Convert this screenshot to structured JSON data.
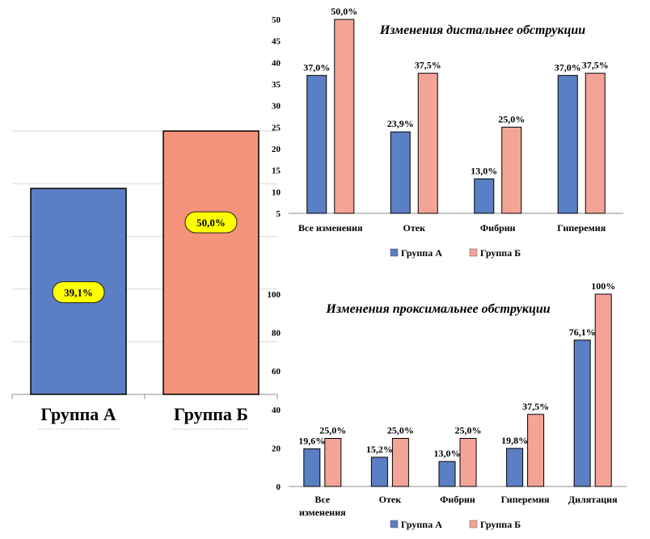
{
  "colors": {
    "group_a": "#5b7fc4",
    "group_b": "#f4a497",
    "group_b_big": "#f49379",
    "pill": "#ffff00"
  },
  "chart_data": [
    {
      "type": "bar",
      "categories": [
        "Группа А",
        "Группа Б"
      ],
      "values": [
        39.1,
        50.0
      ],
      "labels": [
        "39,1%",
        "50,0%"
      ],
      "ylim": [
        0,
        58
      ],
      "grid": true
    },
    {
      "type": "bar",
      "title": "Изменения дистальнее обструкции",
      "categories": [
        "Все изменения",
        "Отек",
        "Фибрин",
        "Гиперемия"
      ],
      "series": [
        {
          "name": "Группа А",
          "values": [
            37.0,
            23.9,
            13.0,
            37.0
          ],
          "labels": [
            "37,0%",
            "23,9%",
            "13,0%",
            "37,0%"
          ]
        },
        {
          "name": "Группа Б",
          "values": [
            50.0,
            37.5,
            25.0,
            37.5
          ],
          "labels": [
            "50,0%",
            "37,5%",
            "25,0%",
            "37,5%"
          ]
        }
      ],
      "ylim": [
        5,
        50
      ],
      "yticks": [
        5,
        10,
        15,
        20,
        25,
        30,
        35,
        40,
        45,
        50
      ],
      "legend": "bottom"
    },
    {
      "type": "bar",
      "title": "Изменения проксимальнее обструкции",
      "categories": [
        [
          "Все",
          "изменения"
        ],
        [
          "Отек"
        ],
        [
          "Фибрин"
        ],
        [
          "Гиперемия"
        ],
        [
          "Дилятация"
        ]
      ],
      "series": [
        {
          "name": "Группа А",
          "values": [
            19.6,
            15.2,
            13.0,
            19.8,
            76.1
          ],
          "labels": [
            "19,6%",
            "15,2%",
            "13,0%",
            "19,8%",
            "76,1%"
          ]
        },
        {
          "name": "Группа Б",
          "values": [
            25.0,
            25.0,
            25.0,
            37.5,
            100.0
          ],
          "labels": [
            "25,0%",
            "25,0%",
            "25,0%",
            "37,5%",
            "100%"
          ]
        }
      ],
      "ylim": [
        0,
        100
      ],
      "yticks": [
        0,
        20,
        40,
        60,
        80,
        100
      ],
      "legend": "bottom"
    }
  ]
}
